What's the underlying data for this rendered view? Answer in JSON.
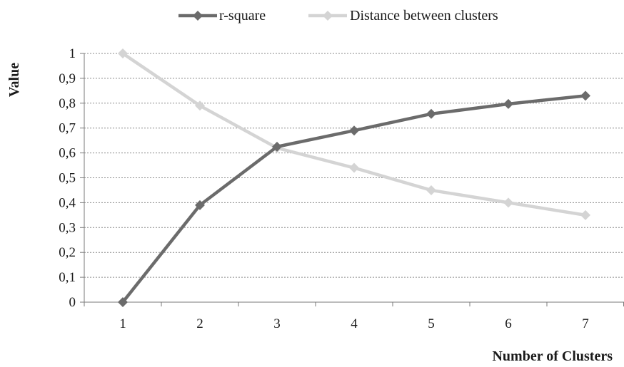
{
  "chart_data": {
    "type": "line",
    "title": "",
    "xlabel": "Number of Clusters",
    "ylabel": "Value",
    "x": [
      1,
      2,
      3,
      4,
      5,
      6,
      7
    ],
    "categories": [
      "1",
      "2",
      "3",
      "4",
      "5",
      "6",
      "7"
    ],
    "ylim": [
      0,
      1
    ],
    "yticks": [
      0,
      0.1,
      0.2,
      0.3,
      0.4,
      0.5,
      0.6,
      0.7,
      0.8,
      0.9,
      1
    ],
    "ytick_labels": [
      "0",
      "0,1",
      "0,2",
      "0,3",
      "0,4",
      "0,5",
      "0,6",
      "0,7",
      "0,8",
      "0,9",
      "1"
    ],
    "grid": "horizontal-dotted",
    "legend_position": "top-center",
    "series": [
      {
        "name": "r-square",
        "color": "#6b6b6b",
        "marker": "diamond",
        "values": [
          0.0,
          0.39,
          0.625,
          0.69,
          0.757,
          0.797,
          0.83
        ]
      },
      {
        "name": "Distance between clusters",
        "color": "#d4d4d4",
        "marker": "diamond",
        "values": [
          1.0,
          0.79,
          0.62,
          0.54,
          0.45,
          0.4,
          0.35
        ]
      }
    ]
  }
}
